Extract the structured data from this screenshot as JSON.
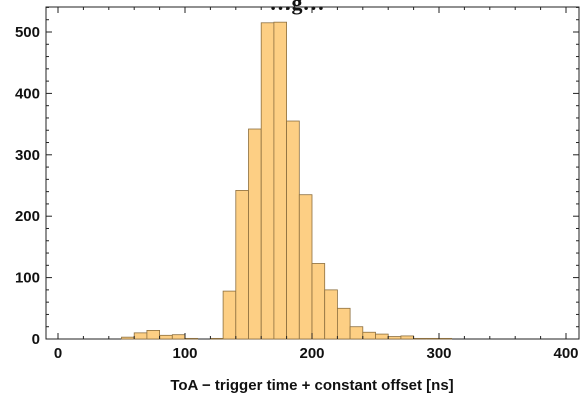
{
  "chart_data": {
    "type": "bar",
    "title": "…g…",
    "xlabel": "ToA − trigger time + constant offset [ns]",
    "ylabel": "",
    "bin_width": 10,
    "bin_starts": [
      50,
      60,
      70,
      80,
      90,
      100,
      110,
      120,
      130,
      140,
      150,
      160,
      170,
      180,
      190,
      200,
      210,
      220,
      230,
      240,
      250,
      260,
      270,
      280,
      290,
      300,
      310
    ],
    "values": [
      3,
      10,
      14,
      6,
      7,
      1,
      0,
      1,
      78,
      242,
      342,
      515,
      516,
      355,
      235,
      123,
      80,
      50,
      20,
      11,
      8,
      4,
      5,
      1,
      1,
      1,
      0
    ],
    "xlim": [
      -10,
      400
    ],
    "ylim": [
      0,
      545
    ],
    "x_ticks": [
      0,
      100,
      200,
      300,
      400
    ],
    "y_ticks": [
      0,
      100,
      200,
      300,
      400,
      500
    ],
    "bar_color": "#fdcf84",
    "bar_edge_color": "#8c6f3f",
    "grid": false
  }
}
